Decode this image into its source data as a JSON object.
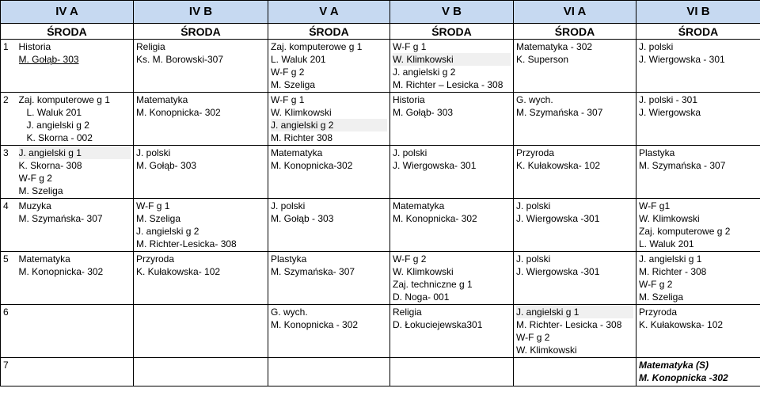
{
  "headers": [
    "IV A",
    "IV B",
    "V A",
    "V B",
    "VI A",
    "VI B"
  ],
  "day": "ŚRODA",
  "lessons": {
    "1": {
      "num": "1",
      "iva": [
        "Historia",
        "M. Gołąb- 303"
      ],
      "ivb": [
        "Religia",
        "Ks. M. Borowski-307"
      ],
      "va": [
        "Zaj. komputerowe g 1",
        "L. Waluk 201",
        "W-F g 2",
        "M. Szeliga"
      ],
      "vb": [
        "W-F g 1",
        "W. Klimkowski",
        "J. angielski g 2",
        "M. Richter – Lesicka - 308"
      ],
      "via": [
        "Matematyka - 302",
        "K. Superson"
      ],
      "vib": [
        "J. polski",
        "J. Wiergowska - 301"
      ]
    },
    "2": {
      "num": "2",
      "iva": [
        "Zaj. komputerowe g 1",
        "L. Waluk 201",
        "J. angielski g 2",
        "K. Skorna - 002"
      ],
      "ivb": [
        "Matematyka",
        "M. Konopnicka- 302"
      ],
      "va": [
        "W-F g 1",
        "W. Klimkowski",
        "J. angielski g 2",
        "M. Richter 308"
      ],
      "vb": [
        "Historia",
        "M. Gołąb- 303"
      ],
      "via": [
        "G. wych.",
        "M. Szymańska - 307"
      ],
      "vib": [
        "J. polski - 301",
        "J. Wiergowska"
      ]
    },
    "3": {
      "num": "3",
      "iva": [
        "J. angielski g 1",
        "K. Skorna- 308",
        "W-F g 2",
        "M. Szeliga"
      ],
      "ivb": [
        "J. polski",
        "M. Gołąb- 303"
      ],
      "va": [
        "Matematyka",
        "M. Konopnicka-302"
      ],
      "vb": [
        "J. polski",
        "J. Wiergowska- 301"
      ],
      "via": [
        "Przyroda",
        "K. Kułakowska- 102"
      ],
      "vib": [
        "Plastyka",
        "M. Szymańska - 307"
      ]
    },
    "4": {
      "num": "4",
      "iva": [
        "Muzyka",
        "M. Szymańska- 307"
      ],
      "ivb": [
        "W-F g 1",
        "M. Szeliga",
        "J. angielski g 2",
        "M. Richter-Lesicka- 308"
      ],
      "va": [
        "J. polski",
        "M. Gołąb - 303"
      ],
      "vb": [
        "Matematyka",
        "M. Konopnicka- 302"
      ],
      "via": [
        "J. polski",
        "J. Wiergowska -301"
      ],
      "vib": [
        "W-F g1",
        "W. Klimkowski",
        "Zaj. komputerowe g 2",
        "L. Waluk 201"
      ]
    },
    "5": {
      "num": "5",
      "iva": [
        "Matematyka",
        "M. Konopnicka- 302"
      ],
      "ivb": [
        "Przyroda",
        "K. Kułakowska- 102"
      ],
      "va": [
        "Plastyka",
        "M. Szymańska- 307"
      ],
      "vb": [
        "W-F g 2",
        "W. Klimkowski",
        "Zaj. techniczne g 1",
        "D. Noga- 001"
      ],
      "via": [
        "J. polski",
        "J. Wiergowska -301"
      ],
      "vib": [
        "J. angielski g 1",
        "M. Richter - 308",
        "W-F g 2",
        "M. Szeliga"
      ]
    },
    "6": {
      "num": "6",
      "va": [
        "G. wych.",
        "M. Konopnicka - 302"
      ],
      "vb": [
        "Religia",
        "D. Łokuciejewska301"
      ],
      "via": [
        "J. angielski g 1",
        "M. Richter- Lesicka - 308",
        "W-F g 2",
        "W. Klimkowski"
      ],
      "vib": [
        "Przyroda",
        "K. Kułakowska- 102"
      ]
    },
    "7": {
      "num": "7",
      "vib": [
        "Matematyka (S)",
        "M. Konopnicka -302"
      ]
    }
  }
}
